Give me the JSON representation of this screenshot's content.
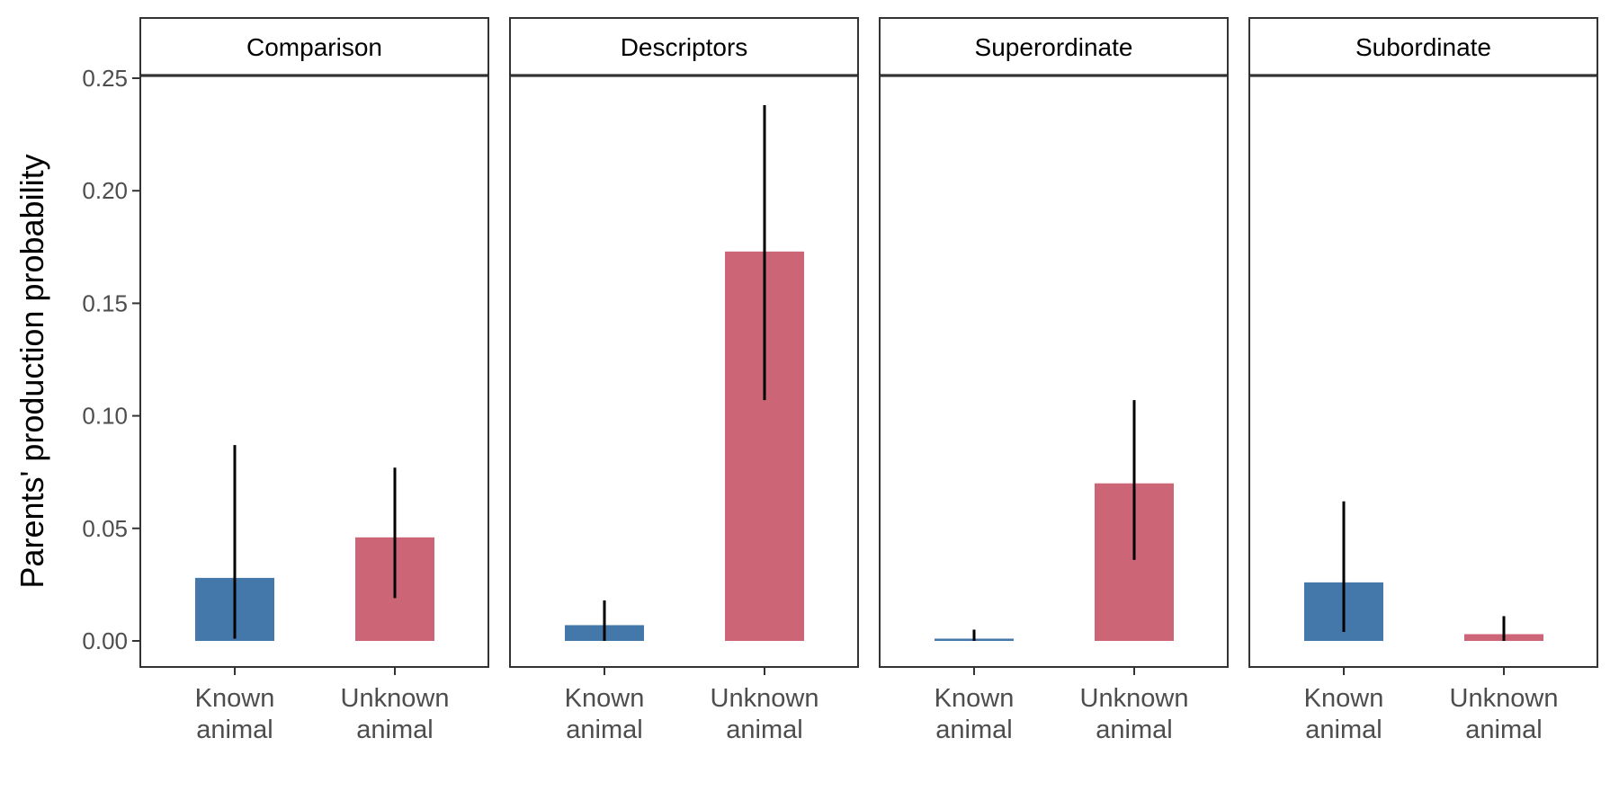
{
  "chart_data": {
    "type": "bar",
    "ylabel": "Parents' production probability",
    "xlabel": "",
    "ylim": [
      -0.012,
      0.27
    ],
    "yticks": [
      0.0,
      0.05,
      0.1,
      0.15,
      0.2,
      0.25
    ],
    "ytick_labels": [
      "0.00",
      "0.05",
      "0.10",
      "0.15",
      "0.20",
      "0.25"
    ],
    "categories": [
      {
        "lines": [
          "Known",
          "animal"
        ],
        "color": "#4477AA"
      },
      {
        "lines": [
          "Unknown",
          "animal"
        ],
        "color": "#CC6677"
      }
    ],
    "grid": false,
    "legend": "none",
    "facets": [
      {
        "label": "Comparison",
        "values": [
          0.028,
          0.046
        ],
        "ci": [
          [
            0.001,
            0.087
          ],
          [
            0.019,
            0.077
          ]
        ]
      },
      {
        "label": "Descriptors",
        "values": [
          0.007,
          0.173
        ],
        "ci": [
          [
            0.0,
            0.018
          ],
          [
            0.107,
            0.238
          ]
        ]
      },
      {
        "label": "Superordinate",
        "values": [
          0.001,
          0.07
        ],
        "ci": [
          [
            0.0,
            0.005
          ],
          [
            0.036,
            0.107
          ]
        ]
      },
      {
        "label": "Subordinate",
        "values": [
          0.026,
          0.003
        ],
        "ci": [
          [
            0.004,
            0.062
          ],
          [
            0.0,
            0.011
          ]
        ]
      }
    ]
  }
}
